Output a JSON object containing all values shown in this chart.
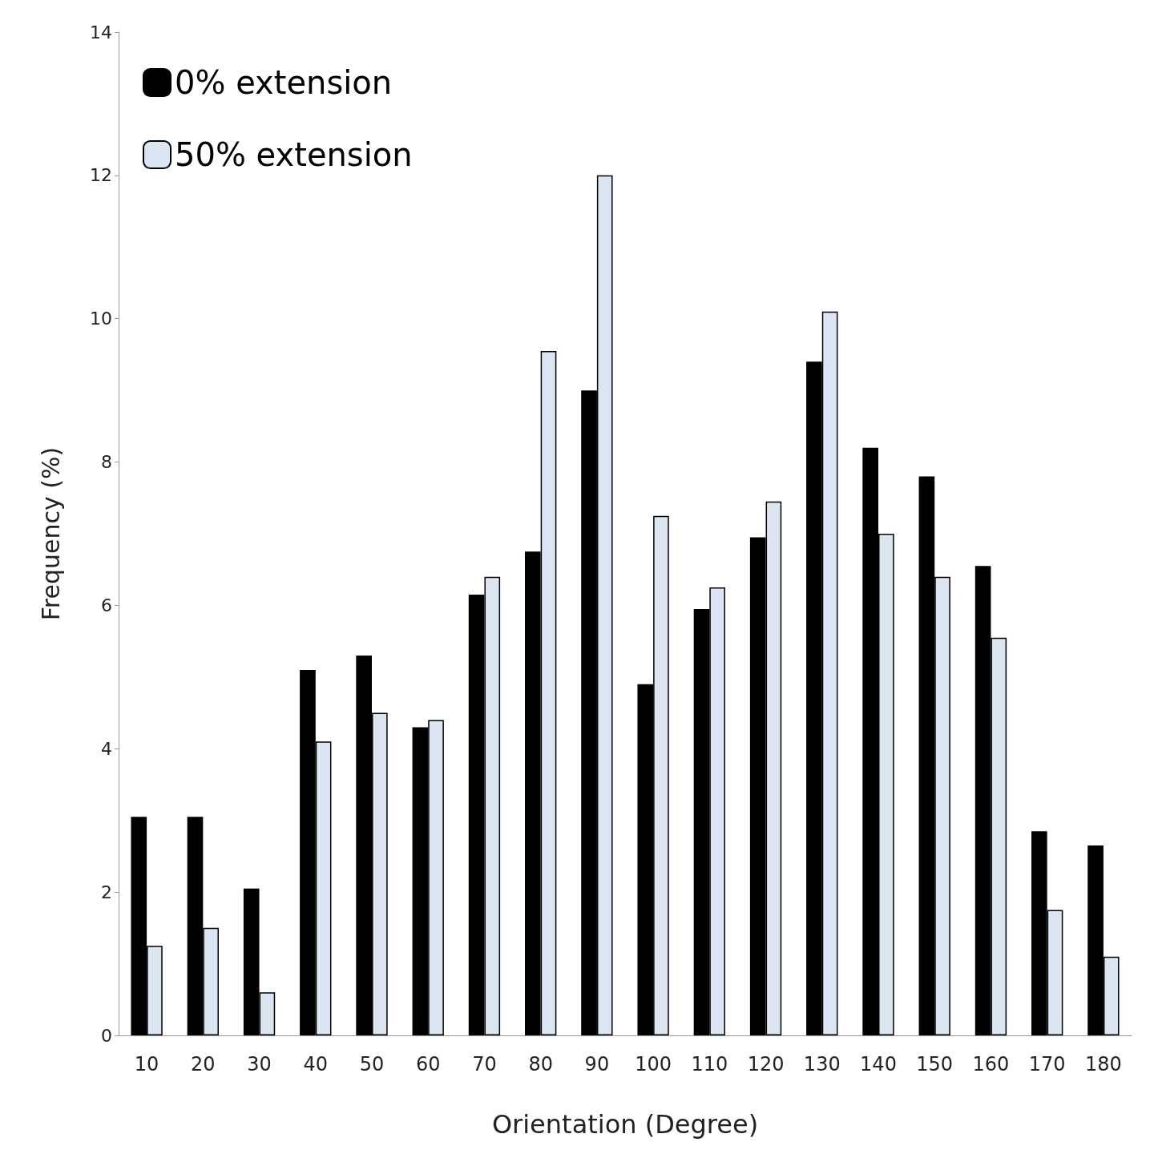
{
  "chart_data": {
    "type": "bar",
    "xlabel": "Orientation (Degree)",
    "ylabel": "Frequency (%)",
    "categories": [
      "10",
      "20",
      "30",
      "40",
      "50",
      "60",
      "70",
      "80",
      "90",
      "100",
      "110",
      "120",
      "130",
      "140",
      "150",
      "160",
      "170",
      "180"
    ],
    "series": [
      {
        "name": "0% extension",
        "color": "#000000",
        "values": [
          3.05,
          3.05,
          2.05,
          5.1,
          5.3,
          4.3,
          6.15,
          6.75,
          9.0,
          4.9,
          5.95,
          6.95,
          9.4,
          8.2,
          7.8,
          6.55,
          2.85,
          2.65
        ]
      },
      {
        "name": "50% extension",
        "color": "#dce6f2",
        "values": [
          1.25,
          1.5,
          0.6,
          4.1,
          4.5,
          4.4,
          6.4,
          9.55,
          12.0,
          7.25,
          6.25,
          7.45,
          10.1,
          7.0,
          6.4,
          5.55,
          1.75,
          1.1
        ]
      }
    ],
    "ylim": [
      0,
      14
    ],
    "yticks": [
      0,
      2,
      4,
      6,
      8,
      10,
      12,
      14
    ],
    "grid": false,
    "legend": "top left"
  }
}
